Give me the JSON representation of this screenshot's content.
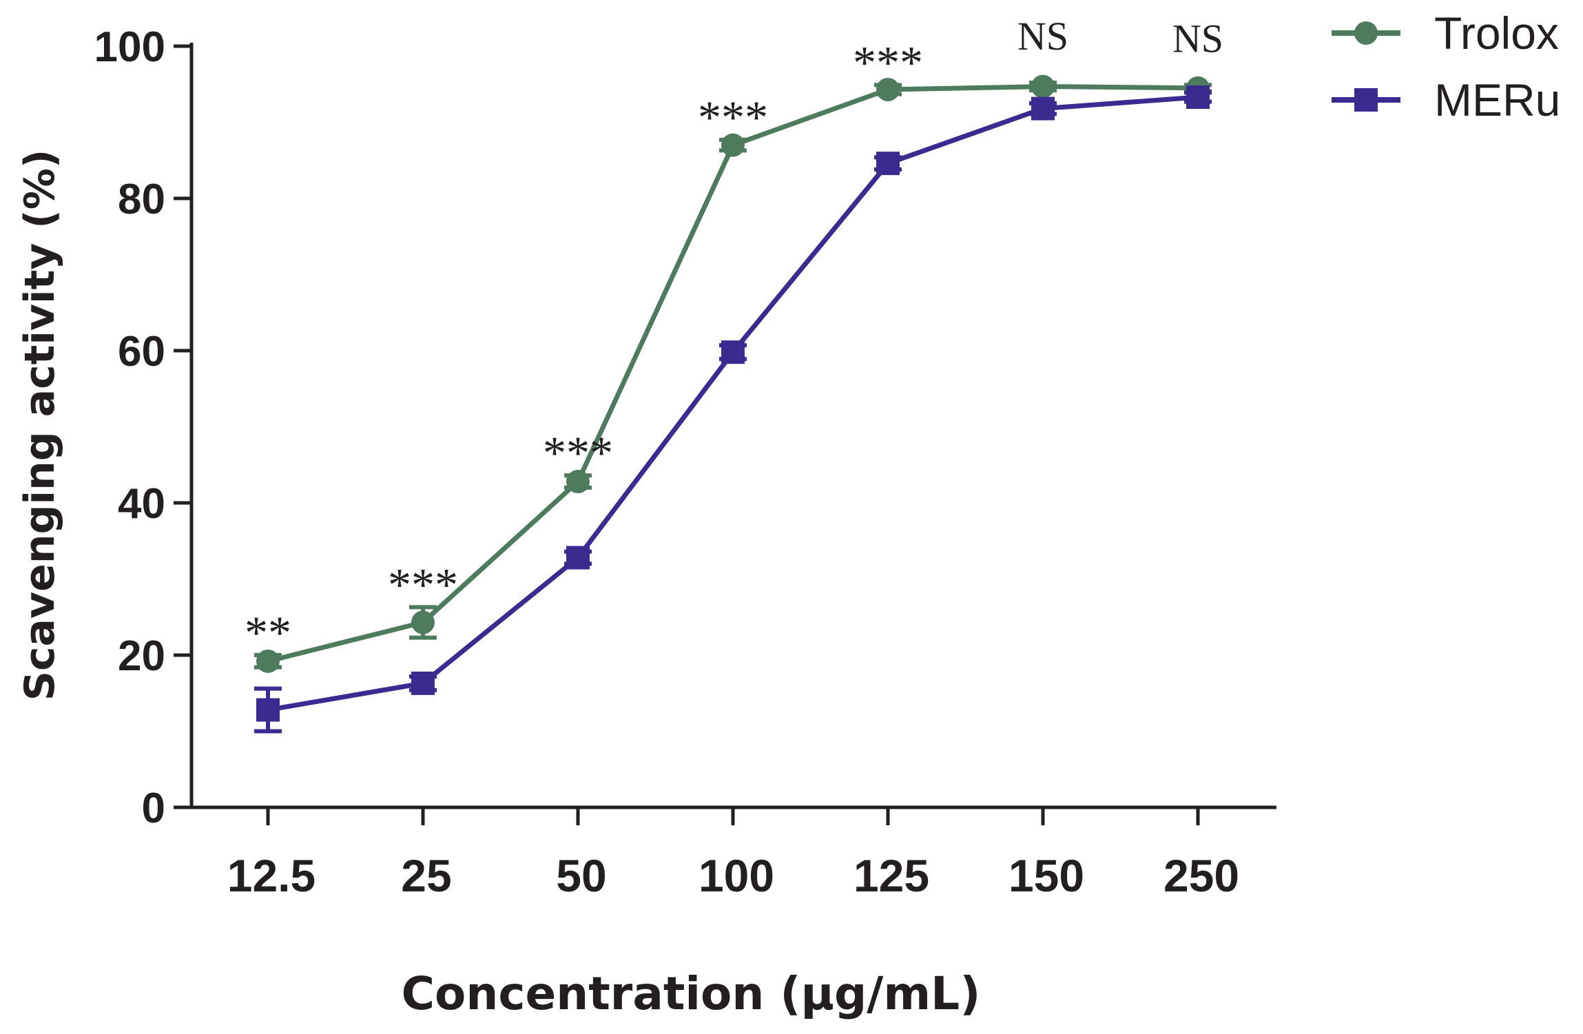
{
  "chart_data": {
    "type": "line",
    "title": "",
    "xlabel": "Concentration (µg/mL)",
    "ylabel": "Scavenging activity (%)",
    "categories": [
      "12.5",
      "25",
      "50",
      "100",
      "125",
      "150",
      "250"
    ],
    "ylim": [
      0,
      100
    ],
    "yticks": [
      0,
      20,
      40,
      60,
      80,
      100
    ],
    "grid": false,
    "legend_position": "top-right",
    "series": [
      {
        "name": "Trolox",
        "marker": "circle",
        "color": "#4e7a5e",
        "values": [
          19.2,
          24.3,
          42.8,
          87.0,
          94.3,
          94.7,
          94.5
        ],
        "errors": [
          0.8,
          2.0,
          0.8,
          0.7,
          0.6,
          0.5,
          0.4
        ]
      },
      {
        "name": "MERu",
        "marker": "square",
        "color": "#3b2a8f",
        "values": [
          12.8,
          16.3,
          32.8,
          59.8,
          84.6,
          91.8,
          93.3
        ],
        "errors": [
          2.8,
          0.9,
          0.8,
          0.9,
          0.8,
          0.7,
          0.6
        ]
      }
    ],
    "annotations": [
      "**",
      "***",
      "***",
      "***",
      "***",
      "NS",
      "NS"
    ]
  }
}
